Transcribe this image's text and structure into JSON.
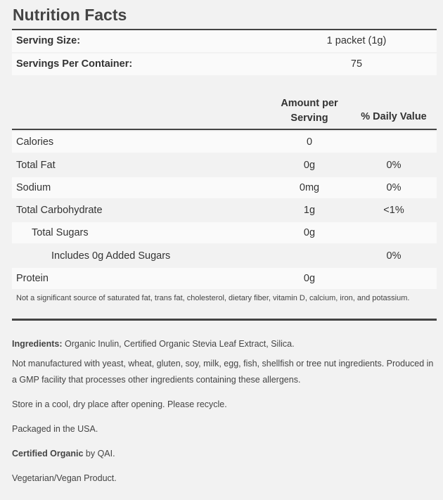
{
  "title": "Nutrition Facts",
  "serving": [
    {
      "label": "Serving Size:",
      "value": "1 packet (1g)"
    },
    {
      "label": "Servings Per Container:",
      "value": "75"
    }
  ],
  "header": {
    "amount_line1": "Amount per",
    "amount_line2": "Serving",
    "daily_value": "% Daily Value"
  },
  "nutrients": [
    {
      "name": "Calories",
      "amount": "0",
      "dv": ""
    },
    {
      "name": "Total Fat",
      "amount": "0g",
      "dv": "0%"
    },
    {
      "name": "Sodium",
      "amount": "0mg",
      "dv": "0%"
    },
    {
      "name": "Total Carbohydrate",
      "amount": "1g",
      "dv": "<1%"
    },
    {
      "name": "Total Sugars",
      "amount": "0g",
      "dv": ""
    },
    {
      "name": "Includes 0g Added Sugars",
      "amount": "",
      "dv": "0%"
    },
    {
      "name": "Protein",
      "amount": "0g",
      "dv": ""
    }
  ],
  "footnote": "Not a significant source of saturated fat, trans fat, cholesterol, dietary fiber, vitamin D, calcium, iron, and potassium.",
  "ingredients": {
    "label": "Ingredients:",
    "text": " Organic Inulin, Certified Organic Stevia Leaf Extract, Silica."
  },
  "allergen": "Not manufactured with yeast, wheat, gluten, soy, milk, egg, fish, shellfish or tree nut ingredients. Produced in a GMP facility that processes other ingredients containing these allergens.",
  "storage": "Store in a cool, dry place after opening. Please recycle.",
  "packaged": "Packaged in the USA.",
  "certified": {
    "label": "Certified Organic",
    "text": " by QAI."
  },
  "vegan": "Vegetarian/Vegan Product."
}
